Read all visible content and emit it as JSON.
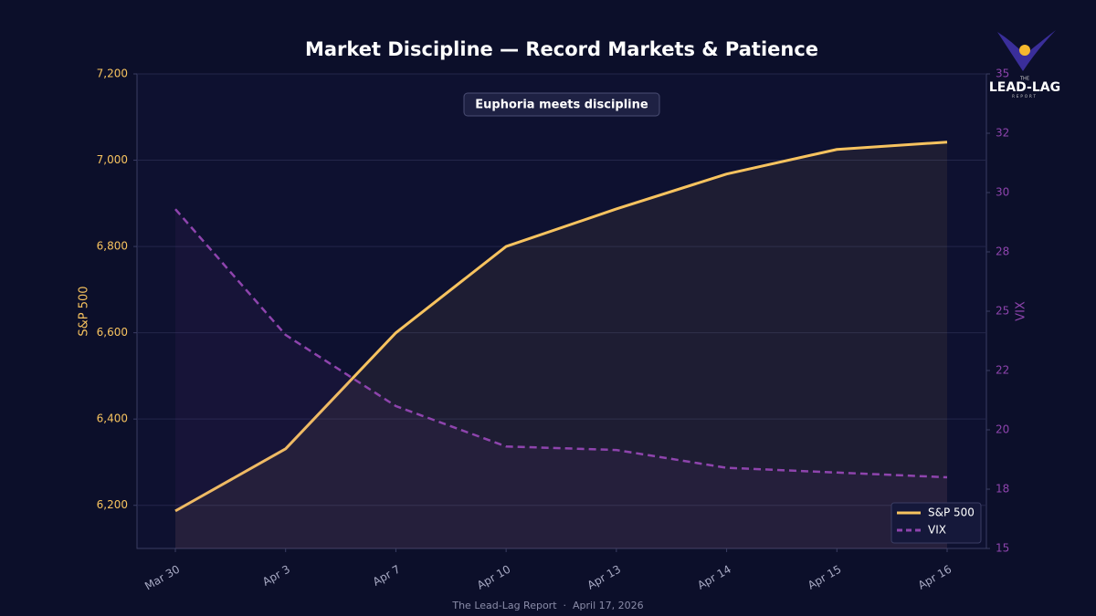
{
  "chart_data": {
    "type": "line",
    "title": "Market Discipline — Record Markets & Patience",
    "annotation": "Euphoria meets discipline",
    "footer": "The Lead-Lag Report  ·  April 17, 2026",
    "logo": {
      "top": "THE",
      "main": "LEAD-LAG",
      "bottom": "REPORT"
    },
    "categories": [
      "Mar 30",
      "Apr 3",
      "Apr 7",
      "Apr 10",
      "Apr 13",
      "Apr 14",
      "Apr 15",
      "Apr 16"
    ],
    "ylabel": "S&P 500",
    "y2label": "VIX",
    "ylim": [
      6100,
      7200
    ],
    "yticks": [
      {
        "value": 6200,
        "label": "6,200"
      },
      {
        "value": 6400,
        "label": "6,400"
      },
      {
        "value": 6600,
        "label": "6,600"
      },
      {
        "value": 6800,
        "label": "6,800"
      },
      {
        "value": 7000,
        "label": "7,000"
      },
      {
        "value": 7200,
        "label": "7,200"
      }
    ],
    "y2lim": [
      15,
      35
    ],
    "y2ticks": [
      15,
      {
        "value": 17.5,
        "label": "18"
      },
      20,
      {
        "value": 22.5,
        "label": "22"
      },
      25,
      {
        "value": 27.5,
        "label": "28"
      },
      30,
      {
        "value": 32.5,
        "label": "32"
      },
      35
    ],
    "grid": true,
    "legend": "lower right",
    "series": [
      {
        "name": "S&P 500",
        "color": "#f7c35f",
        "dash": false,
        "values": [
          6187,
          6331,
          6600,
          6800,
          6887,
          6968,
          7025,
          7042
        ]
      },
      {
        "name": "VIX",
        "color": "#8e44ad",
        "dash": true,
        "axis": "y2",
        "values": [
          29.3,
          24.0,
          21.0,
          19.3,
          19.15,
          18.4,
          18.2,
          18.0
        ]
      }
    ]
  }
}
